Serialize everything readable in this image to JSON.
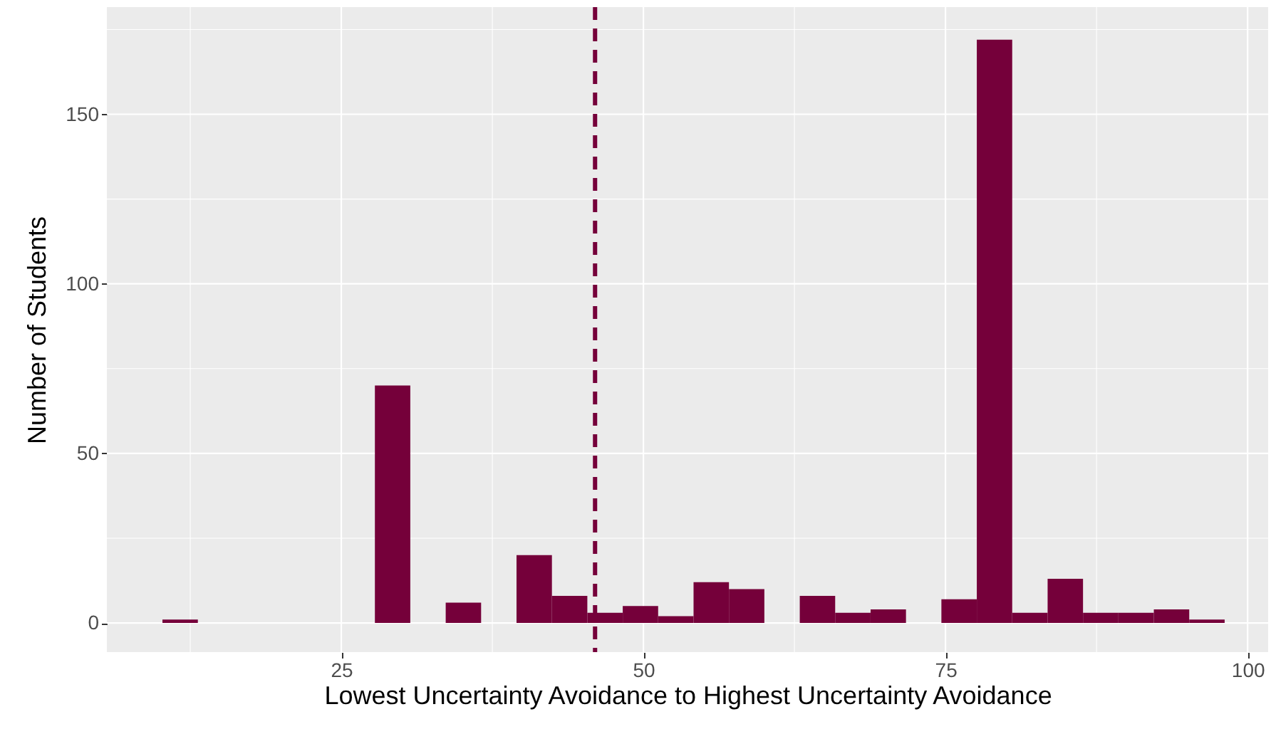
{
  "chart_data": {
    "type": "histogram",
    "xlabel": "Lowest Uncertainty Avoidance  to Highest Uncertainty Avoidance",
    "ylabel": "Number of Students",
    "bins": [
      10.2,
      13.13,
      16.06,
      18.99,
      21.92,
      24.85,
      27.78,
      30.71,
      33.64,
      36.57,
      39.5,
      42.43,
      45.36,
      48.29,
      51.22,
      54.15,
      57.08,
      60.01,
      62.94,
      65.87,
      68.8,
      71.73,
      74.66,
      77.59,
      80.52,
      83.45,
      86.38,
      89.31,
      92.24,
      95.17,
      98.1
    ],
    "values": [
      1,
      0,
      0,
      0,
      0,
      0,
      70,
      0,
      6,
      0,
      20,
      8,
      3,
      5,
      2,
      12,
      10,
      0,
      8,
      3,
      4,
      0,
      7,
      172,
      3,
      13,
      3,
      3,
      4,
      1
    ],
    "color": "#75003a",
    "xlim": [
      5.6,
      101.7
    ],
    "xticks": [
      {
        "value": 12.5,
        "label": null
      },
      25,
      {
        "value": 37.5,
        "label": null
      },
      50,
      {
        "value": 62.5,
        "label": null
      },
      75,
      {
        "value": 87.5,
        "label": null
      },
      100
    ],
    "ylim": [
      -8.6,
      181.6
    ],
    "yticks": [
      0,
      {
        "value": 25,
        "label": null
      },
      50,
      {
        "value": 75,
        "label": null
      },
      100,
      {
        "value": 125,
        "label": null
      },
      150,
      {
        "value": 175,
        "label": null
      }
    ],
    "grid": true,
    "ref_lines": [
      {
        "axis": "x",
        "value": 46.0,
        "color": "#75003a",
        "line_style": "dashed"
      }
    ]
  }
}
